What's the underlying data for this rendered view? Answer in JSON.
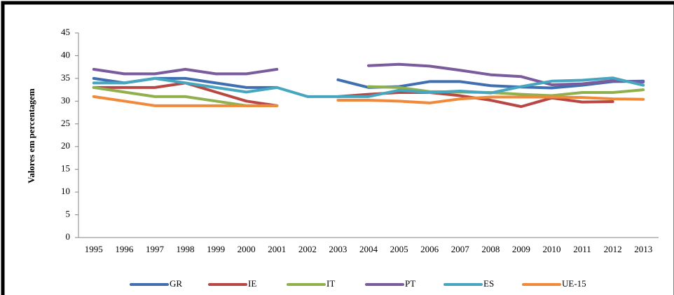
{
  "chart_data": {
    "type": "line",
    "y_label": "Valores em percentagem",
    "categories": [
      "1995",
      "1996",
      "1997",
      "1998",
      "1999",
      "2000",
      "2001",
      "2002",
      "2003",
      "2004",
      "2005",
      "2006",
      "2007",
      "2008",
      "2009",
      "2010",
      "2011",
      "2012",
      "2013"
    ],
    "series": [
      {
        "name": "GR",
        "color": "#3f6fb0",
        "values": [
          35,
          34,
          35,
          35,
          34,
          33,
          33,
          null,
          34.7,
          33,
          33.2,
          34.3,
          34.3,
          33.4,
          33.1,
          32.9,
          33.5,
          34.3,
          34.4
        ]
      },
      {
        "name": "IE",
        "color": "#b84744",
        "values": [
          33,
          33,
          33,
          34,
          32,
          30,
          29,
          null,
          31,
          31.5,
          31.9,
          31.9,
          31.2,
          30.2,
          28.8,
          30.7,
          29.8,
          29.9,
          null
        ]
      },
      {
        "name": "IT",
        "color": "#8fb04c",
        "values": [
          33,
          32,
          31,
          31,
          30,
          29,
          29,
          null,
          null,
          33.2,
          33,
          32.1,
          32,
          31.9,
          31.5,
          31.2,
          31.9,
          31.9,
          32.5
        ]
      },
      {
        "name": "PT",
        "color": "#7a5b9c",
        "values": [
          37,
          36,
          36,
          37,
          36,
          36,
          37,
          null,
          null,
          37.8,
          38.1,
          37.7,
          36.8,
          35.8,
          35.4,
          33.6,
          33.8,
          34.5,
          34.2
        ]
      },
      {
        "name": "ES",
        "color": "#46a6c0",
        "values": [
          34,
          34,
          35,
          34,
          33,
          32,
          33,
          31,
          31,
          31,
          32.4,
          31.9,
          32.2,
          31.8,
          33.2,
          34.4,
          34.6,
          35.1,
          33.5
        ]
      },
      {
        "name": "UE-15",
        "color": "#f08a3a",
        "values": [
          31,
          30,
          29,
          29,
          29,
          29,
          29,
          null,
          30.2,
          30.2,
          30,
          29.6,
          30.5,
          30.9,
          30.9,
          30.9,
          30.8,
          30.5,
          30.4
        ]
      }
    ],
    "ylim": [
      0,
      45
    ],
    "yticks": [
      0,
      5,
      10,
      15,
      20,
      25,
      30,
      35,
      40,
      45
    ],
    "grid": false,
    "legend": "bottom"
  }
}
